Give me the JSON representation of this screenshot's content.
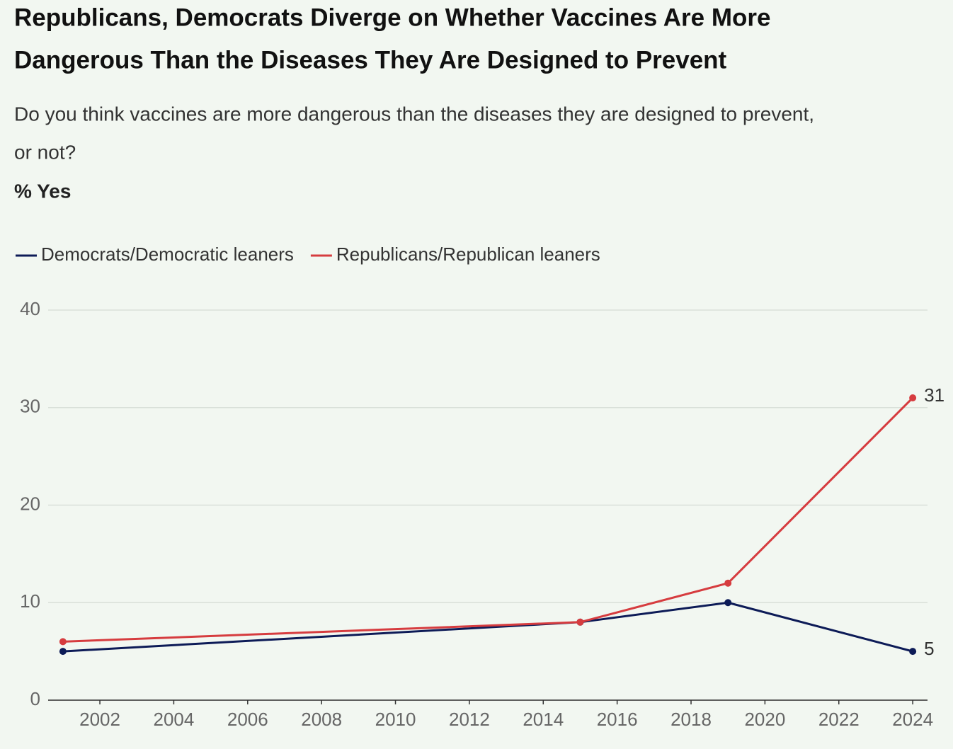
{
  "chart_data": {
    "type": "line",
    "title": [
      "Republicans, Democrats Diverge on Whether Vaccines Are More",
      "Dangerous Than the Diseases They Are Designed to Prevent"
    ],
    "subtitle": [
      "Do you think vaccines are more dangerous than the diseases they are designed to prevent,",
      "or not?"
    ],
    "y_label": "% Yes",
    "x": [
      2001,
      2015,
      2019,
      2024
    ],
    "series": [
      {
        "name": "Democrats/Democratic leaners",
        "color": "#0d1b57",
        "values": [
          5,
          8,
          10,
          5
        ]
      },
      {
        "name": "Republicans/Republican leaners",
        "color": "#d63c3f",
        "values": [
          6,
          8,
          12,
          31
        ]
      }
    ],
    "xlim": [
      2000.6,
      2024.4
    ],
    "xticks": [
      2002,
      2004,
      2006,
      2008,
      2010,
      2012,
      2014,
      2016,
      2018,
      2020,
      2022,
      2024
    ],
    "ylim": [
      0,
      40
    ],
    "yticks": [
      0,
      10,
      20,
      30,
      40
    ],
    "grid": true,
    "legend": "top",
    "end_labels": true
  }
}
